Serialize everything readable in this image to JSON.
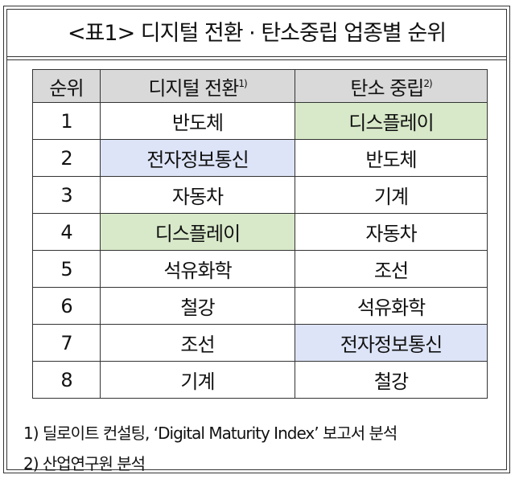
{
  "title": "<표1> 디지털 전환 · 탄소중립 업종별 순위",
  "table": {
    "headers": [
      {
        "label": "순위",
        "sup": ""
      },
      {
        "label": "디지털 전환",
        "sup": "1)"
      },
      {
        "label": "탄소 중립",
        "sup": "2)"
      }
    ],
    "rows": [
      {
        "rank": "1",
        "digital": "반도체",
        "carbon": "디스플레이",
        "digital_bg": "",
        "carbon_bg": "#d8e9c9"
      },
      {
        "rank": "2",
        "digital": "전자정보통신",
        "carbon": "반도체",
        "digital_bg": "#dde4f7",
        "carbon_bg": ""
      },
      {
        "rank": "3",
        "digital": "자동차",
        "carbon": "기계",
        "digital_bg": "",
        "carbon_bg": ""
      },
      {
        "rank": "4",
        "digital": "디스플레이",
        "carbon": "자동차",
        "digital_bg": "#d8e9c9",
        "carbon_bg": ""
      },
      {
        "rank": "5",
        "digital": "석유화학",
        "carbon": "조선",
        "digital_bg": "",
        "carbon_bg": ""
      },
      {
        "rank": "6",
        "digital": "철강",
        "carbon": "석유화학",
        "digital_bg": "",
        "carbon_bg": ""
      },
      {
        "rank": "7",
        "digital": "조선",
        "carbon": "전자정보통신",
        "digital_bg": "",
        "carbon_bg": "#dde4f7"
      },
      {
        "rank": "8",
        "digital": "기계",
        "carbon": "철강",
        "digital_bg": "",
        "carbon_bg": ""
      }
    ]
  },
  "footnotes": [
    "1) 딜로이트 컨설팅, ‘Digital Maturity Index’ 보고서 분석",
    "2) 산업연구원 분석"
  ]
}
